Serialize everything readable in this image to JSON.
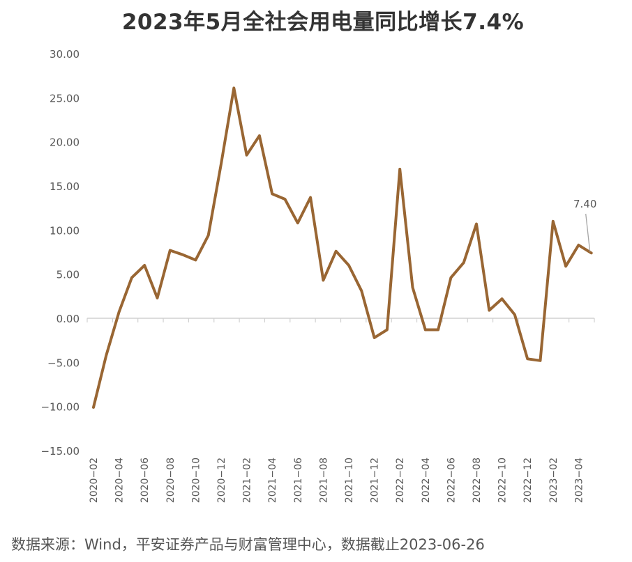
{
  "source_text": "数据来源：Wind，平安证券产品与财富管理中心，数据截止2023-06-26",
  "colors": {
    "series": "#996633",
    "axis": "#d0d0d0",
    "text": "#595959"
  },
  "chart_data": {
    "type": "line",
    "title": "2023年5月全社会用电量同比增长7.4%",
    "xlabel": "",
    "ylabel": "",
    "ylim": [
      -15,
      30
    ],
    "yticks": [
      30,
      25,
      20,
      15,
      10,
      5,
      0,
      -5,
      -10,
      -15
    ],
    "ytick_labels": [
      "30.00",
      "25.00",
      "20.00",
      "15.00",
      "10.00",
      "5.00",
      "0.00",
      "−5.00",
      "−10.00",
      "−15.00"
    ],
    "xtick_labels": [
      "2020−02",
      "2020−04",
      "2020−06",
      "2020−08",
      "2020−10",
      "2020−12",
      "2021−02",
      "2021−04",
      "2021−06",
      "2021−08",
      "2021−10",
      "2021−12",
      "2022−02",
      "2022−04",
      "2022−06",
      "2022−08",
      "2022−10",
      "2022−12",
      "2023−02",
      "2023−04"
    ],
    "grid": false,
    "legend": "none",
    "x": [
      "2020-02",
      "2020-03",
      "2020-04",
      "2020-05",
      "2020-06",
      "2020-07",
      "2020-08",
      "2020-09",
      "2020-10",
      "2020-11",
      "2020-12",
      "2021-01",
      "2021-02",
      "2021-03",
      "2021-04",
      "2021-05",
      "2021-06",
      "2021-07",
      "2021-08",
      "2021-09",
      "2021-10",
      "2021-11",
      "2021-12",
      "2022-01",
      "2022-02",
      "2022-03",
      "2022-04",
      "2022-05",
      "2022-06",
      "2022-07",
      "2022-08",
      "2022-09",
      "2022-10",
      "2022-11",
      "2022-12",
      "2023-01",
      "2023-02",
      "2023-03",
      "2023-04",
      "2023-05"
    ],
    "series": [
      {
        "values": [
          -10.1,
          -4.2,
          0.7,
          4.6,
          6.0,
          2.3,
          7.7,
          7.2,
          6.6,
          9.4,
          17.5,
          26.1,
          18.5,
          20.7,
          14.1,
          13.5,
          10.8,
          13.7,
          4.3,
          7.6,
          6.0,
          3.1,
          -2.2,
          -1.3,
          16.9,
          3.5,
          -1.3,
          -1.3,
          4.6,
          6.3,
          10.7,
          0.9,
          2.2,
          0.4,
          -4.6,
          -4.8,
          11.0,
          5.9,
          8.3,
          7.4
        ]
      }
    ],
    "annotation": {
      "x": "2023-05",
      "text": "7.40"
    }
  }
}
